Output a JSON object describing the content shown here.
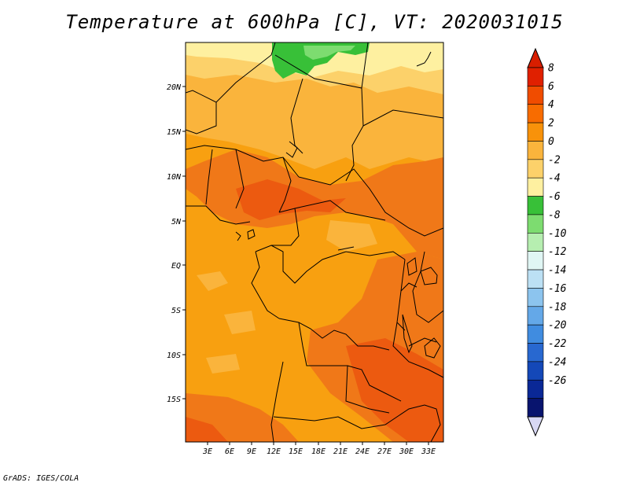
{
  "title": "Temperature at 600hPa [C], VT: 2020031015",
  "footer": "GrADS: IGES/COLA",
  "map": {
    "lat_labels": [
      "20N",
      "15N",
      "10N",
      "5N",
      "EQ",
      "5S",
      "10S",
      "15S"
    ],
    "lon_labels": [
      "3E",
      "6E",
      "9E",
      "12E",
      "15E",
      "18E",
      "21E",
      "24E",
      "27E",
      "30E",
      "33E"
    ]
  },
  "colorbar": {
    "labels": [
      "8",
      "6",
      "4",
      "2",
      "0",
      "-2",
      "-4",
      "-6",
      "-8",
      "-10",
      "-12",
      "-14",
      "-16",
      "-18",
      "-20",
      "-22",
      "-24",
      "-26"
    ],
    "colors": [
      "#e02000",
      "#f04c00",
      "#f86c00",
      "#f8920a",
      "#fab43c",
      "#fcd16a",
      "#fef0a0",
      "#38c038",
      "#7ddc70",
      "#b6eeb0",
      "#e0f6f4",
      "#bce0f4",
      "#8cc4ee",
      "#64a8e8",
      "#408ce0",
      "#2868d0",
      "#1448b8",
      "#0a2896",
      "#08146e"
    ],
    "top_arrow_color": "#d81e00",
    "bottom_arrow_color": "#d8d8f4"
  },
  "field_colors": {
    "base": "#f8a010",
    "warm": "#f07818",
    "hot": "#ec5a10",
    "cool": "#fab43c",
    "cooler": "#fcd16a",
    "pale": "#fef0a0",
    "green": "#38c038",
    "lightgreen": "#7ddc70"
  }
}
